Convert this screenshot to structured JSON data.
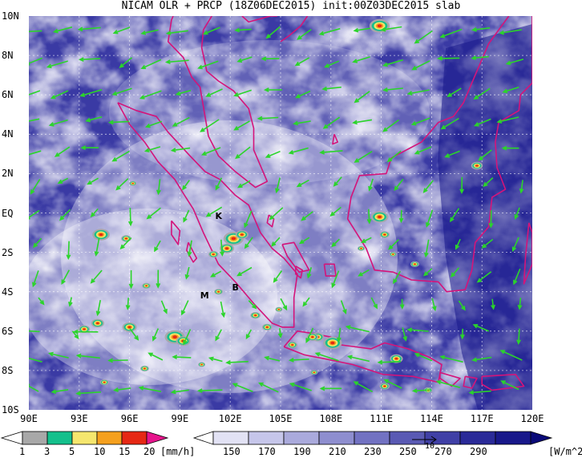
{
  "title": "NICAM OLR + PRCP (18Z06DEC2015) init:00Z03DEC2015 slab",
  "map": {
    "lat_labels": [
      "10N",
      "8N",
      "6N",
      "4N",
      "2N",
      "EQ",
      "2S",
      "4S",
      "6S",
      "8S",
      "10S"
    ],
    "lon_labels": [
      "90E",
      "93E",
      "96E",
      "99E",
      "102E",
      "105E",
      "108E",
      "111E",
      "114E",
      "117E",
      "120E"
    ],
    "places": [
      {
        "label": "K",
        "lon": 101.3,
        "lat": -0.2
      },
      {
        "label": "M",
        "lon": 100.4,
        "lat": -4.2
      },
      {
        "label": "B",
        "lon": 102.3,
        "lat": -3.8
      }
    ],
    "colors": {
      "coast": "#d4147a",
      "wind": "#2bd42b",
      "grid": "#ffffff"
    }
  },
  "prcp_legend": {
    "unit": "[mm/h]",
    "ticks": [
      "1",
      "3",
      "5",
      "10",
      "15",
      "20"
    ],
    "colors": [
      "#ffffff",
      "#a8a8a8",
      "#14c08c",
      "#f5e66e",
      "#f5a01e",
      "#e62814",
      "#e6148c"
    ]
  },
  "olr_legend": {
    "unit": "[W/m^2]",
    "ticks": [
      "150",
      "170",
      "190",
      "210",
      "230",
      "250",
      "270",
      "290"
    ],
    "colors": [
      "#ffffff",
      "#e2e2f4",
      "#c6c6ea",
      "#aaaadc",
      "#8e8ecf",
      "#7272c2",
      "#5a5ab4",
      "#4040a6",
      "#2a2a98",
      "#18188a",
      "#0a0a78"
    ],
    "vector_reference": "10"
  }
}
